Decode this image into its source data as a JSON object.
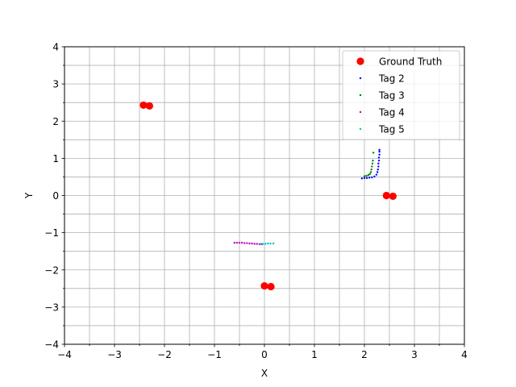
{
  "chart_data": {
    "type": "scatter",
    "title": "",
    "xlabel": "X",
    "ylabel": "Y",
    "xlim": [
      -4,
      4
    ],
    "ylim": [
      -4,
      4
    ],
    "major_ticks": [
      -4,
      -3,
      -2,
      -1,
      0,
      1,
      2,
      3,
      4
    ],
    "grid": true,
    "grid_step": 0.5,
    "legend_location": "upper right",
    "series": [
      {
        "name": "Ground Truth",
        "color": "#ff0000",
        "marker": "large-circle",
        "points": [
          [
            -2.42,
            2.43
          ],
          [
            -2.3,
            2.41
          ],
          [
            2.44,
            0.0
          ],
          [
            2.57,
            -0.02
          ],
          [
            0.0,
            -2.43
          ],
          [
            0.13,
            -2.45
          ]
        ]
      },
      {
        "name": "Tag 2",
        "color": "#0000ff",
        "marker": "small-dot",
        "points": [
          [
            1.95,
            0.46
          ],
          [
            2.0,
            0.47
          ],
          [
            2.05,
            0.47
          ],
          [
            2.1,
            0.48
          ],
          [
            2.15,
            0.49
          ],
          [
            2.2,
            0.51
          ],
          [
            2.24,
            0.56
          ],
          [
            2.26,
            0.63
          ],
          [
            2.27,
            0.7
          ],
          [
            2.28,
            0.78
          ],
          [
            2.28,
            0.86
          ],
          [
            2.29,
            0.94
          ],
          [
            2.29,
            1.02
          ],
          [
            2.3,
            1.1
          ],
          [
            2.3,
            1.18
          ],
          [
            2.3,
            1.23
          ]
        ]
      },
      {
        "name": "Tag 3",
        "color": "#008000",
        "marker": "small-dot",
        "points": [
          [
            2.0,
            0.52
          ],
          [
            2.04,
            0.53
          ],
          [
            2.08,
            0.55
          ],
          [
            2.11,
            0.58
          ],
          [
            2.13,
            0.63
          ],
          [
            2.14,
            0.7
          ],
          [
            2.15,
            0.78
          ],
          [
            2.16,
            0.86
          ],
          [
            2.17,
            0.94
          ],
          [
            2.18,
            1.15
          ]
        ]
      },
      {
        "name": "Tag 4",
        "color": "#bf00bf",
        "marker": "small-dot",
        "points": [
          [
            -0.6,
            -1.27
          ],
          [
            -0.55,
            -1.27
          ],
          [
            -0.5,
            -1.27
          ],
          [
            -0.45,
            -1.27
          ],
          [
            -0.4,
            -1.28
          ],
          [
            -0.35,
            -1.28
          ],
          [
            -0.3,
            -1.29
          ],
          [
            -0.25,
            -1.29
          ],
          [
            -0.2,
            -1.3
          ],
          [
            -0.15,
            -1.3
          ],
          [
            -0.1,
            -1.31
          ],
          [
            -0.05,
            -1.31
          ]
        ]
      },
      {
        "name": "Tag 5",
        "color": "#00bfbf",
        "marker": "small-dot",
        "points": [
          [
            -0.08,
            -1.3
          ],
          [
            -0.03,
            -1.3
          ],
          [
            0.02,
            -1.3
          ],
          [
            0.07,
            -1.29
          ],
          [
            0.12,
            -1.29
          ],
          [
            0.18,
            -1.29
          ]
        ]
      }
    ]
  }
}
